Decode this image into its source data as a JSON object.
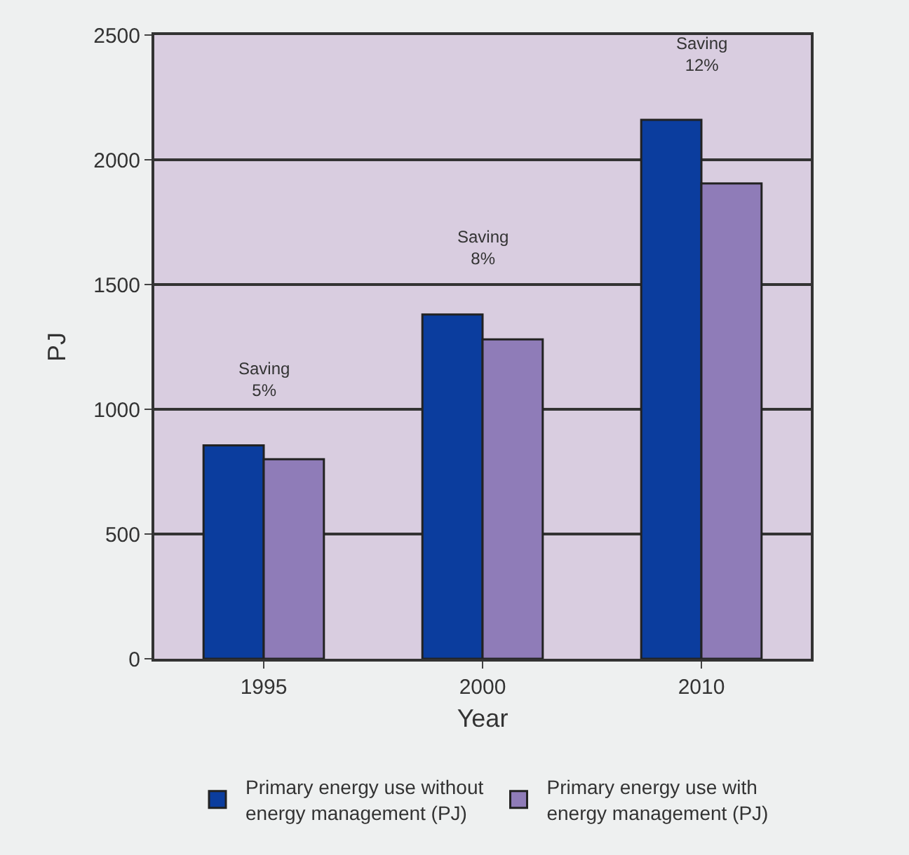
{
  "chart_data": {
    "type": "bar",
    "xlabel": "Year",
    "ylabel": "PJ",
    "categories": [
      "1995",
      "2000",
      "2010"
    ],
    "series": [
      {
        "name": "Primary energy use without energy management (PJ)",
        "color": "#0b3d9e",
        "values": [
          855,
          1380,
          2160
        ]
      },
      {
        "name": "Primary energy use with energy management (PJ)",
        "color": "#8f7cb8",
        "values": [
          800,
          1280,
          1905
        ]
      }
    ],
    "ylim": [
      0,
      2500
    ],
    "yticks": [
      0,
      500,
      1000,
      1500,
      2000,
      2500
    ],
    "grid": "y",
    "legend": "bottom",
    "annotations": [
      {
        "text": "Saving\n5%",
        "x": "1995",
        "y": 855
      },
      {
        "text": "Saving\n8%",
        "x": "2000",
        "y": 1380
      },
      {
        "text": "Saving\n12%",
        "x": "2010",
        "y": 2160
      }
    ]
  }
}
